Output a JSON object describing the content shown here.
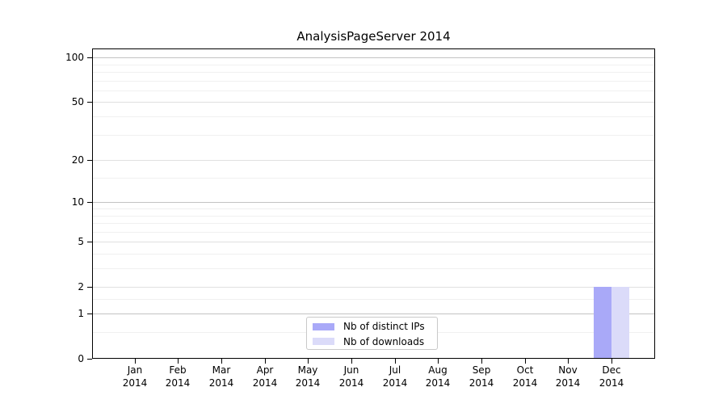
{
  "chart_data": {
    "type": "bar",
    "title": "AnalysisPageServer 2014",
    "categories": [
      "Jan",
      "Feb",
      "Mar",
      "Apr",
      "May",
      "Jun",
      "Jul",
      "Aug",
      "Sep",
      "Oct",
      "Nov",
      "Dec"
    ],
    "x_year": "2014",
    "series": [
      {
        "name": "Nb of distinct IPs",
        "color": "#a9a9f8",
        "values": [
          0,
          0,
          0,
          0,
          0,
          0,
          0,
          0,
          0,
          0,
          0,
          2
        ]
      },
      {
        "name": "Nb of downloads",
        "color": "#dbdbf9",
        "values": [
          0,
          0,
          0,
          0,
          0,
          0,
          0,
          0,
          0,
          0,
          0,
          2
        ]
      }
    ],
    "xlabel": "",
    "ylabel": "",
    "yscale": "log1p",
    "ylim": [
      0,
      115
    ],
    "y_major_ticks": [
      0,
      1,
      2,
      5,
      10,
      20,
      50,
      100
    ],
    "y_minor_ticks": [
      0.5,
      1.5,
      3,
      4,
      6,
      7,
      8,
      9,
      15,
      30,
      40,
      60,
      70,
      80,
      90
    ],
    "grid": "horizontal-only",
    "legend_position": "inside-bottom-center",
    "style": {
      "background": "#ffffff",
      "spine_color": "#000000",
      "text_color": "#000000",
      "grid_major_decade_color": "#c3c3c3",
      "grid_major_color": "#e0e0e0",
      "grid_minor_color": "#f0f0f0",
      "legend_border_color": "#c9c9c9"
    }
  }
}
